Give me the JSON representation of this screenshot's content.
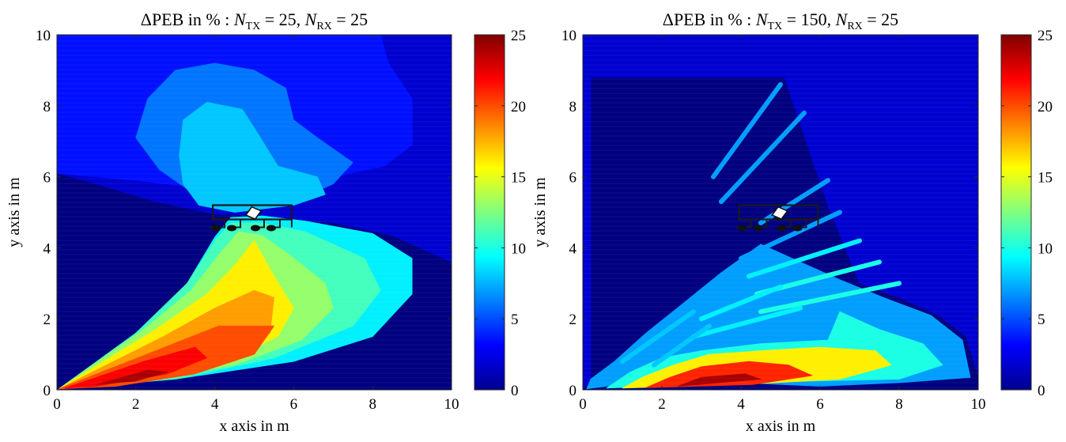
{
  "chart_data": [
    {
      "type": "heatmap",
      "title": "ΔPEB in % : N_TX = 25, N_RX = 25",
      "title_parts": {
        "lead": "ΔPEB in % : ",
        "sym1": "N",
        "sub1": "TX",
        "mid": " = 25, ",
        "sym2": "N",
        "sub2": "RX",
        "tail": " = 25"
      },
      "xlabel": "x axis in m",
      "ylabel": "y axis in m",
      "xlim": [
        0,
        10
      ],
      "ylim": [
        0,
        10
      ],
      "xticks": [
        "0",
        "2",
        "4",
        "6",
        "8",
        "10"
      ],
      "yticks": [
        "0",
        "2",
        "4",
        "6",
        "8",
        "10"
      ],
      "colorbar": {
        "min": 0,
        "max": 25,
        "ticks": [
          "0",
          "5",
          "10",
          "15",
          "20",
          "25"
        ]
      },
      "colormap": "jet",
      "regions": [
        {
          "value": 2,
          "points": [
            [
              0,
              6.1
            ],
            [
              1,
              5.8
            ],
            [
              2.5,
              5.3
            ],
            [
              4,
              4.95
            ],
            [
              5,
              4.9
            ],
            [
              7,
              4.7
            ],
            [
              8.5,
              4.35
            ],
            [
              10,
              3.6
            ],
            [
              10,
              10
            ],
            [
              8.2,
              10
            ],
            [
              8.4,
              9.2
            ],
            [
              9,
              8.2
            ],
            [
              9,
              6.9
            ],
            [
              8.3,
              6.3
            ],
            [
              7,
              6
            ],
            [
              5,
              5.55
            ],
            [
              3.5,
              5.9
            ],
            [
              2,
              6.1
            ],
            [
              1,
              6.2
            ],
            [
              0,
              6.4
            ]
          ]
        },
        {
          "value": 3.5,
          "points": [
            [
              0,
              6.1
            ],
            [
              2,
              5.9
            ],
            [
              3.5,
              5.7
            ],
            [
              5,
              5.5
            ],
            [
              7,
              6
            ],
            [
              8.3,
              6.3
            ],
            [
              9,
              6.9
            ],
            [
              9,
              8.2
            ],
            [
              8.4,
              9.2
            ],
            [
              8.2,
              10
            ],
            [
              0,
              10
            ]
          ]
        },
        {
          "value": 6,
          "points": [
            [
              2,
              7.1
            ],
            [
              2.3,
              8.2
            ],
            [
              3,
              9
            ],
            [
              4,
              9.2
            ],
            [
              5,
              9
            ],
            [
              5.8,
              8.5
            ],
            [
              6,
              7.6
            ],
            [
              6.6,
              7.1
            ],
            [
              7.5,
              6.4
            ],
            [
              7,
              5.8
            ],
            [
              6,
              5.3
            ],
            [
              4.5,
              5.1
            ],
            [
              3.5,
              5.5
            ],
            [
              2.6,
              6.2
            ]
          ]
        },
        {
          "value": 8,
          "points": [
            [
              3.1,
              6.6
            ],
            [
              3.2,
              7.6
            ],
            [
              3.8,
              8.1
            ],
            [
              4.7,
              7.9
            ],
            [
              5.1,
              7.2
            ],
            [
              5.6,
              6.3
            ],
            [
              6.6,
              6
            ],
            [
              6.8,
              5.5
            ],
            [
              6,
              5.2
            ],
            [
              4.5,
              5
            ],
            [
              3.6,
              5.2
            ],
            [
              3.2,
              5.8
            ]
          ]
        },
        {
          "value": 9,
          "points": [
            [
              0.05,
              0.03
            ],
            [
              2,
              1.5
            ],
            [
              3.3,
              3
            ],
            [
              4,
              4.3
            ],
            [
              4.4,
              4.85
            ],
            [
              5.2,
              4.9
            ],
            [
              6.3,
              4.75
            ],
            [
              8,
              4.4
            ],
            [
              9,
              3.7
            ],
            [
              9,
              2.7
            ],
            [
              8,
              1.5
            ],
            [
              6,
              0.8
            ],
            [
              3,
              0.3
            ]
          ]
        },
        {
          "value": 11,
          "points": [
            [
              0.05,
              0.03
            ],
            [
              2,
              1.6
            ],
            [
              3.3,
              3
            ],
            [
              4,
              4.2
            ],
            [
              4.4,
              4.7
            ],
            [
              5.2,
              4.7
            ],
            [
              6.3,
              4.45
            ],
            [
              7.8,
              3.7
            ],
            [
              8.2,
              2.8
            ],
            [
              7.5,
              1.8
            ],
            [
              5.5,
              0.9
            ],
            [
              3,
              0.3
            ]
          ]
        },
        {
          "value": 13,
          "points": [
            [
              0.05,
              0.03
            ],
            [
              2.2,
              1.7
            ],
            [
              3.4,
              2.8
            ],
            [
              4.1,
              3.8
            ],
            [
              4.6,
              4.45
            ],
            [
              5.2,
              4.35
            ],
            [
              5.9,
              3.8
            ],
            [
              6.8,
              3
            ],
            [
              7,
              2.3
            ],
            [
              6.2,
              1.4
            ],
            [
              4.5,
              0.7
            ],
            [
              2,
              0.2
            ]
          ]
        },
        {
          "value": 16,
          "points": [
            [
              0.05,
              0.03
            ],
            [
              2.5,
              1.7
            ],
            [
              3.8,
              2.7
            ],
            [
              4.5,
              3.5
            ],
            [
              5,
              4.2
            ],
            [
              5.5,
              3.2
            ],
            [
              6,
              2.3
            ],
            [
              5.6,
              1.5
            ],
            [
              4.3,
              0.8
            ],
            [
              2,
              0.2
            ]
          ]
        },
        {
          "value": 18,
          "points": [
            [
              0.05,
              0.03
            ],
            [
              2.7,
              1.5
            ],
            [
              4,
              2.3
            ],
            [
              5,
              2.8
            ],
            [
              5.5,
              2.6
            ],
            [
              5.4,
              1.6
            ],
            [
              4.5,
              0.9
            ],
            [
              2.5,
              0.3
            ]
          ]
        },
        {
          "value": 20,
          "points": [
            [
              0.05,
              0.03
            ],
            [
              2.5,
              1.1
            ],
            [
              4.1,
              1.8
            ],
            [
              5.5,
              1.8
            ],
            [
              5,
              1
            ],
            [
              3.5,
              0.45
            ],
            [
              1.5,
              0.1
            ]
          ]
        },
        {
          "value": 22,
          "points": [
            [
              0.2,
              0.05
            ],
            [
              2.2,
              0.8
            ],
            [
              3.5,
              1.2
            ],
            [
              3.8,
              0.9
            ],
            [
              2.8,
              0.45
            ],
            [
              1,
              0.1
            ]
          ]
        },
        {
          "value": 24,
          "points": [
            [
              1,
              0.15
            ],
            [
              2.3,
              0.55
            ],
            [
              2.8,
              0.5
            ],
            [
              2,
              0.25
            ]
          ]
        }
      ]
    },
    {
      "type": "heatmap",
      "title": "ΔPEB in % : N_TX = 150, N_RX = 25",
      "title_parts": {
        "lead": "ΔPEB in % : ",
        "sym1": "N",
        "sub1": "TX",
        "mid": " = 150, ",
        "sym2": "N",
        "sub2": "RX",
        "tail": " = 25"
      },
      "xlabel": "x axis in m",
      "ylabel": "y axis in m",
      "xlim": [
        0,
        10
      ],
      "ylim": [
        0,
        10
      ],
      "xticks": [
        "0",
        "2",
        "4",
        "6",
        "8",
        "10"
      ],
      "yticks": [
        "0",
        "2",
        "4",
        "6",
        "8",
        "10"
      ],
      "colorbar": {
        "min": 0,
        "max": 25,
        "ticks": [
          "0",
          "5",
          "10",
          "15",
          "20",
          "25"
        ]
      },
      "colormap": "jet",
      "regions": [
        {
          "value": 2,
          "points": [
            [
              0,
              0
            ],
            [
              0,
              10
            ],
            [
              10,
              10
            ],
            [
              10,
              0.4
            ],
            [
              9.7,
              1.5
            ],
            [
              9,
              2.1
            ],
            [
              8,
              2.6
            ],
            [
              7,
              3
            ],
            [
              6.2,
              5.2
            ],
            [
              5.8,
              6.5
            ],
            [
              5.5,
              7.5
            ],
            [
              5.1,
              8.8
            ],
            [
              0.2,
              8.8
            ],
            [
              0.2,
              0.3
            ]
          ]
        },
        {
          "value": 7,
          "points": [
            [
              0.1,
              0.03
            ],
            [
              2,
              0.3
            ],
            [
              4,
              0.2
            ],
            [
              6,
              0.1
            ],
            [
              8,
              0.2
            ],
            [
              9.8,
              0.35
            ],
            [
              9.6,
              1.4
            ],
            [
              8.8,
              2.1
            ],
            [
              7.6,
              2.6
            ],
            [
              6.5,
              3.1
            ],
            [
              5.5,
              3.6
            ],
            [
              4.5,
              4.1
            ],
            [
              3.5,
              3.3
            ],
            [
              2.5,
              2.4
            ],
            [
              1.6,
              1.6
            ],
            [
              0.8,
              0.8
            ],
            [
              0.2,
              0.3
            ]
          ]
        },
        {
          "value": 10,
          "points": [
            [
              0.6,
              0.05
            ],
            [
              4,
              0.2
            ],
            [
              8,
              0.3
            ],
            [
              9.1,
              0.7
            ],
            [
              8.6,
              1.3
            ],
            [
              7.5,
              1.7
            ],
            [
              6.5,
              2.2
            ],
            [
              6.2,
              1.4
            ],
            [
              4.5,
              1.3
            ],
            [
              3,
              1.1
            ],
            [
              2,
              0.9
            ],
            [
              1.2,
              0.5
            ]
          ]
        },
        {
          "value": 16,
          "points": [
            [
              1,
              0.05
            ],
            [
              4,
              0.15
            ],
            [
              6.5,
              0.3
            ],
            [
              7.8,
              0.7
            ],
            [
              7.4,
              1.1
            ],
            [
              6,
              1.2
            ],
            [
              4.5,
              1.1
            ],
            [
              3.2,
              1
            ],
            [
              2.3,
              0.7
            ],
            [
              1.5,
              0.35
            ]
          ]
        },
        {
          "value": 21,
          "points": [
            [
              1.6,
              0.06
            ],
            [
              4.3,
              0.15
            ],
            [
              5.8,
              0.4
            ],
            [
              5.2,
              0.7
            ],
            [
              4.2,
              0.8
            ],
            [
              3,
              0.65
            ],
            [
              2.2,
              0.35
            ]
          ]
        },
        {
          "value": 24,
          "points": [
            [
              2.4,
              0.1
            ],
            [
              4.5,
              0.3
            ],
            [
              4.1,
              0.45
            ],
            [
              3,
              0.35
            ]
          ]
        }
      ],
      "streaks": [
        {
          "value": 7,
          "from": [
            3.3,
            6.0
          ],
          "to": [
            5.0,
            8.6
          ]
        },
        {
          "value": 7,
          "from": [
            3.5,
            5.3
          ],
          "to": [
            5.6,
            7.8
          ]
        },
        {
          "value": 7,
          "from": [
            4.5,
            4.7
          ],
          "to": [
            6.2,
            5.9
          ]
        },
        {
          "value": 7,
          "from": [
            4.0,
            3.7
          ],
          "to": [
            6.5,
            5.0
          ]
        },
        {
          "value": 9,
          "from": [
            4.2,
            3.2
          ],
          "to": [
            7.0,
            4.2
          ]
        },
        {
          "value": 10,
          "from": [
            4.4,
            2.7
          ],
          "to": [
            7.5,
            3.6
          ]
        },
        {
          "value": 10,
          "from": [
            4.5,
            2.2
          ],
          "to": [
            8.0,
            3.0
          ]
        },
        {
          "value": 9,
          "from": [
            3.0,
            2.0
          ],
          "to": [
            5.0,
            2.9
          ]
        },
        {
          "value": 9,
          "from": [
            2.8,
            1.5
          ],
          "to": [
            5.5,
            2.3
          ]
        },
        {
          "value": 8,
          "from": [
            1.0,
            0.8
          ],
          "to": [
            2.8,
            2.2
          ]
        },
        {
          "value": 8,
          "from": [
            1.8,
            0.7
          ],
          "to": [
            3.2,
            1.8
          ]
        }
      ]
    }
  ]
}
